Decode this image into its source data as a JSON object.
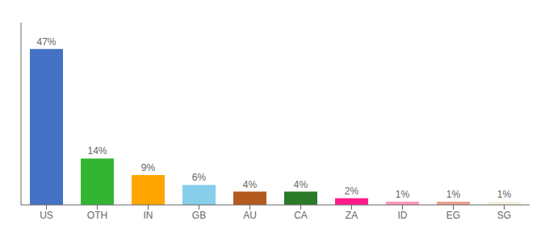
{
  "chart_data": {
    "type": "bar",
    "categories": [
      "US",
      "OTH",
      "IN",
      "GB",
      "AU",
      "CA",
      "ZA",
      "ID",
      "EG",
      "SG"
    ],
    "values": [
      47,
      14,
      9,
      6,
      4,
      4,
      2,
      1,
      1,
      1
    ],
    "value_labels": [
      "47%",
      "14%",
      "9%",
      "6%",
      "4%",
      "4%",
      "2%",
      "1%",
      "1%",
      "1%"
    ],
    "colors": [
      "#4472c4",
      "#33b533",
      "#ffa500",
      "#87ceeb",
      "#b35a1f",
      "#2a7a2a",
      "#ff1a8c",
      "#ff99bb",
      "#e8a090",
      "#f5f0dc"
    ],
    "ylim": [
      0,
      55
    ],
    "data_labels": true,
    "tick_labels": "x"
  }
}
